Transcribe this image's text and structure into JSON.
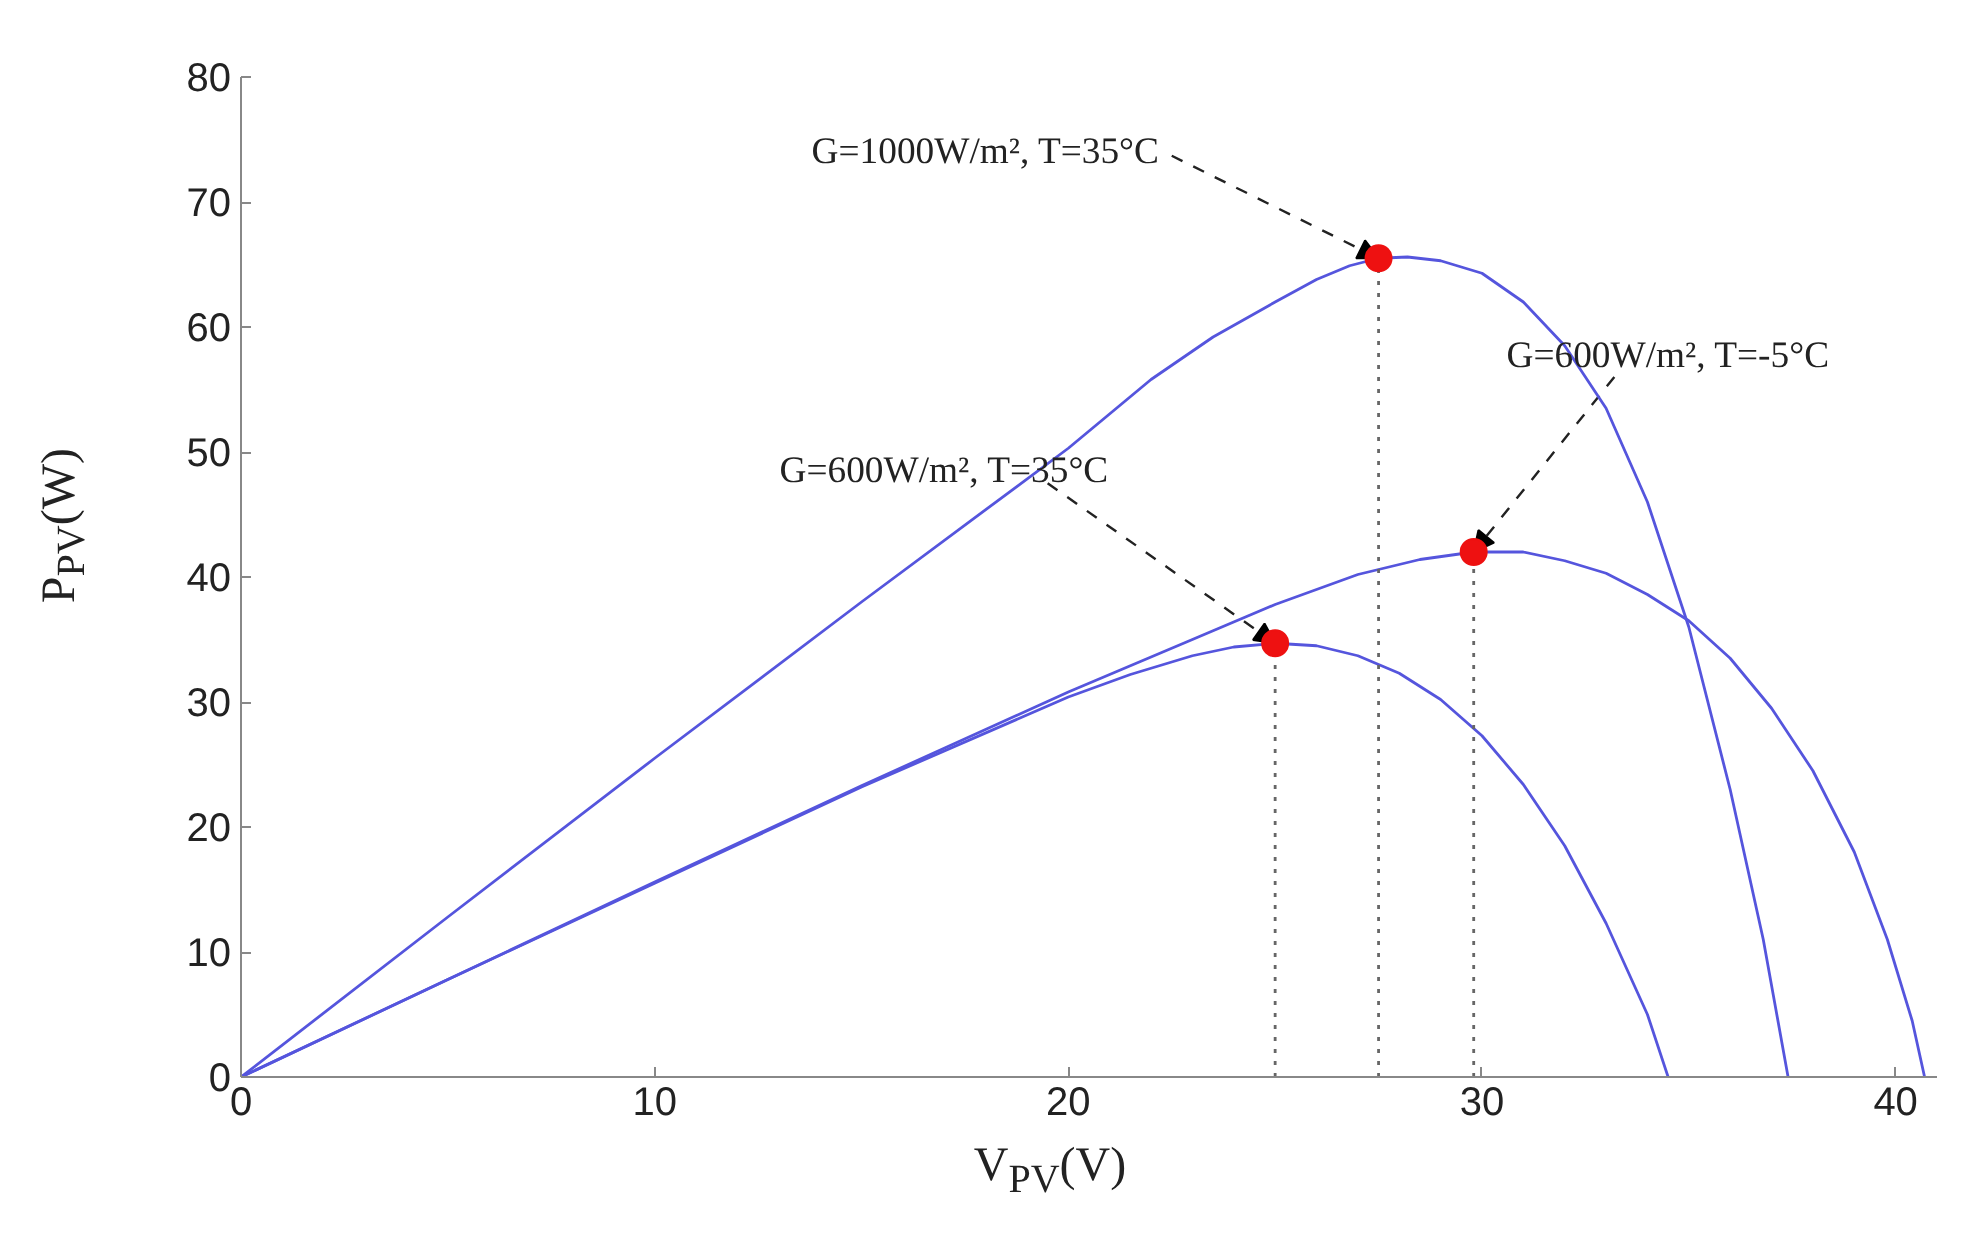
{
  "chart_data": {
    "type": "line",
    "xlabel": "V$_{PV}$(V)",
    "ylabel": "P$_{PV}$(W)",
    "xlim": [
      0,
      41
    ],
    "ylim": [
      0,
      80
    ],
    "xticks": [
      0,
      10,
      20,
      30,
      40
    ],
    "yticks": [
      0,
      10,
      20,
      30,
      40,
      50,
      60,
      70,
      80
    ],
    "grid": false,
    "marker": "none",
    "line_style": "solid",
    "series": [
      {
        "color": "#5555dd",
        "x": [
          0,
          5,
          10,
          15,
          20,
          22,
          23.5,
          25,
          26,
          26.8,
          27.5,
          28.2,
          29,
          30,
          31,
          32,
          33,
          34,
          35,
          36,
          36.8,
          37.4
        ],
        "values": [
          0,
          12.8,
          25.5,
          38,
          50.3,
          55.8,
          59.2,
          62,
          63.8,
          64.9,
          65.5,
          65.6,
          65.3,
          64.3,
          62,
          58.5,
          53.5,
          46,
          36,
          23,
          11,
          0
        ]
      },
      {
        "color": "#5555dd",
        "x": [
          0,
          5,
          10,
          15,
          20,
          21.5,
          23,
          24,
          25,
          26,
          27,
          28,
          29,
          30,
          31,
          32,
          33,
          34,
          34.5
        ],
        "values": [
          0,
          7.8,
          15.5,
          23.2,
          30.4,
          32.2,
          33.7,
          34.4,
          34.7,
          34.5,
          33.7,
          32.3,
          30.2,
          27.3,
          23.4,
          18.5,
          12.3,
          5,
          0
        ]
      },
      {
        "color": "#5555dd",
        "x": [
          0,
          5,
          10,
          15,
          20,
          23,
          25,
          27,
          28.5,
          29.8,
          31,
          32,
          33,
          34,
          35,
          36,
          37,
          38,
          39,
          39.8,
          40.4,
          40.7
        ],
        "values": [
          0,
          7.8,
          15.6,
          23.3,
          30.8,
          35,
          37.8,
          40.2,
          41.4,
          42,
          42,
          41.3,
          40.3,
          38.6,
          36.5,
          33.5,
          29.5,
          24.5,
          18,
          11,
          4.5,
          0
        ]
      },
      {
        "type": "line",
        "line_style": "dotted",
        "color": "#666666",
        "x": [
          27.5,
          27.5
        ],
        "values": [
          0,
          65.5
        ]
      },
      {
        "type": "line",
        "line_style": "dotted",
        "color": "#666666",
        "x": [
          25,
          25
        ],
        "values": [
          0,
          34.7
        ]
      },
      {
        "type": "line",
        "line_style": "dotted",
        "color": "#666666",
        "x": [
          29.8,
          29.8
        ],
        "values": [
          0,
          42
        ]
      },
      {
        "type": "scatter",
        "marker": "circle",
        "color": "#ee1111",
        "x": [
          27.5,
          29.8,
          25
        ],
        "values": [
          65.5,
          42,
          34.7
        ]
      }
    ],
    "annotations": [
      {
        "text": "G=1000W/m², T=35°C",
        "x": 27.5,
        "y": 65.5
      },
      {
        "text": "G=600W/m², T=-5°C",
        "x": 29.8,
        "y": 42
      },
      {
        "text": "G=600W/m², T=35°C",
        "x": 25,
        "y": 34.7
      }
    ]
  }
}
